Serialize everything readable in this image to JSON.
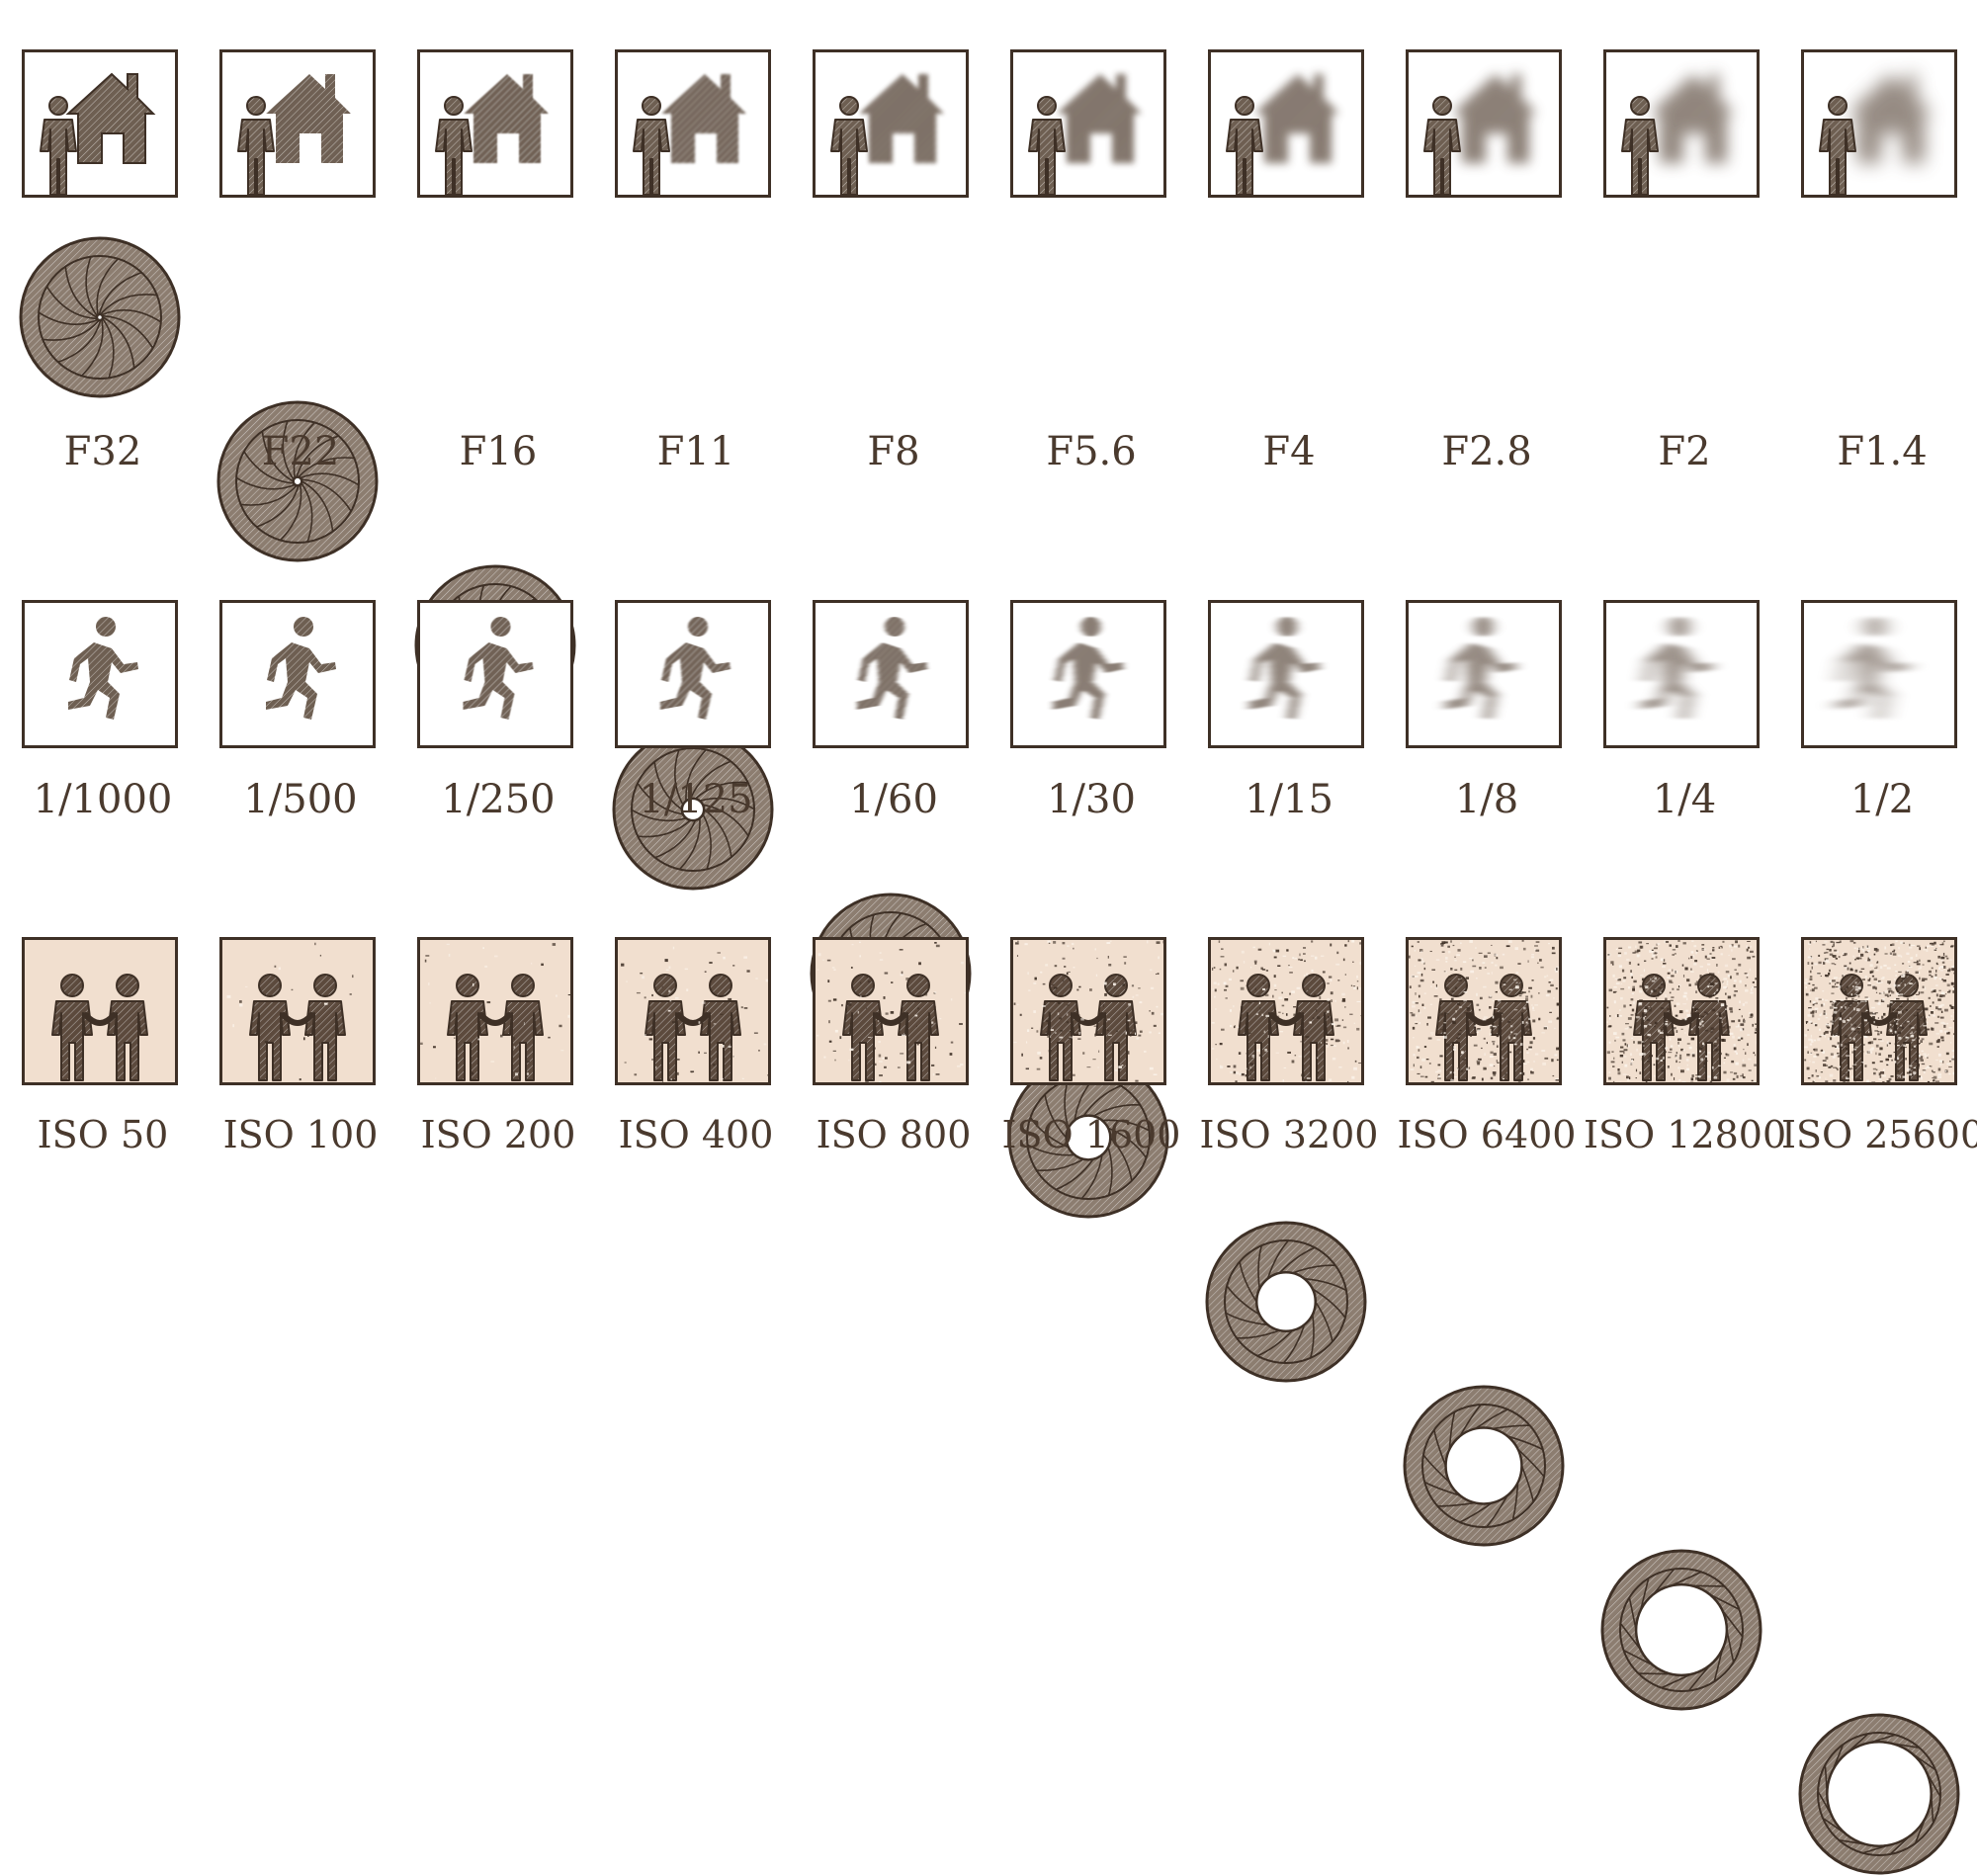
{
  "palette": {
    "ink": "#3e3026",
    "fill": "#6e5f52",
    "iso_background": "#f1dfcf",
    "text": "#4a3a2e"
  },
  "aperture_row": {
    "icons": [
      "person-house-icon",
      "aperture-icon"
    ],
    "items": [
      {
        "label": "F32",
        "blur": 0,
        "opening": 0.04
      },
      {
        "label": "F22",
        "blur": 0.3,
        "opening": 0.07
      },
      {
        "label": "F16",
        "blur": 0.7,
        "opening": 0.11
      },
      {
        "label": "F11",
        "blur": 1.2,
        "opening": 0.18
      },
      {
        "label": "F8",
        "blur": 2,
        "opening": 0.26
      },
      {
        "label": "F5.6",
        "blur": 3.2,
        "opening": 0.36
      },
      {
        "label": "F4",
        "blur": 4.5,
        "opening": 0.48
      },
      {
        "label": "F2.8",
        "blur": 6,
        "opening": 0.62
      },
      {
        "label": "F2",
        "blur": 7.5,
        "opening": 0.74
      },
      {
        "label": "F1.4",
        "blur": 9,
        "opening": 0.85
      }
    ]
  },
  "shutter_row": {
    "icons": [
      "running-person-icon"
    ],
    "items": [
      {
        "label": "1/1000",
        "motion": 0
      },
      {
        "label": "1/500",
        "motion": 0
      },
      {
        "label": "1/250",
        "motion": 0.05
      },
      {
        "label": "1/125",
        "motion": 0.1
      },
      {
        "label": "1/60",
        "motion": 0.2
      },
      {
        "label": "1/30",
        "motion": 0.35
      },
      {
        "label": "1/15",
        "motion": 0.5
      },
      {
        "label": "1/8",
        "motion": 0.65
      },
      {
        "label": "1/4",
        "motion": 0.8
      },
      {
        "label": "1/2",
        "motion": 1
      }
    ]
  },
  "iso_row": {
    "icons": [
      "two-people-handshake-icon"
    ],
    "items": [
      {
        "label": "ISO 50",
        "noise": 0
      },
      {
        "label": "ISO 100",
        "noise": 0.02
      },
      {
        "label": "ISO 200",
        "noise": 0.04
      },
      {
        "label": "ISO 400",
        "noise": 0.07
      },
      {
        "label": "ISO 800",
        "noise": 0.1
      },
      {
        "label": "ISO 1600",
        "noise": 0.15
      },
      {
        "label": "ISO 3200",
        "noise": 0.25
      },
      {
        "label": "ISO 6400",
        "noise": 0.4
      },
      {
        "label": "ISO 12800",
        "noise": 0.6
      },
      {
        "label": "ISO 25600",
        "noise": 0.9
      }
    ]
  }
}
